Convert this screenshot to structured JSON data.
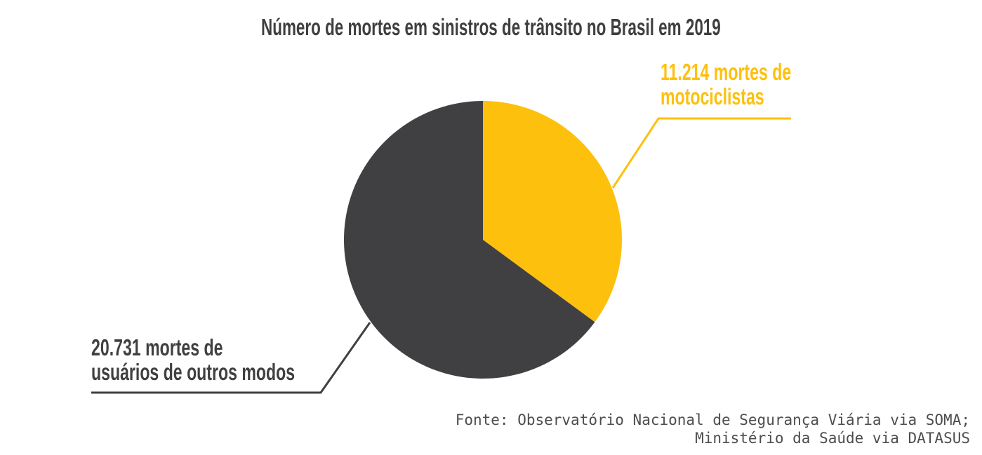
{
  "title": "Número de mortes em sinistros de trânsito no Brasil em 2019",
  "colors": {
    "motociclistas_yellow": "#FDC00D",
    "outros_dark_gray": "#403F41",
    "title_text": "#3F3E40",
    "source_text": "#4D4D4D",
    "background": "#FFFFFF"
  },
  "source": {
    "line1": "Fonte: Observatório Nacional de Segurança Viária via SOMA;",
    "line2": "Ministério da Saúde via DATASUS"
  },
  "chart_data": {
    "type": "pie",
    "title": "Número de mortes em sinistros de trânsito no Brasil em 2019",
    "categories": [
      "mortes de motociclistas",
      "mortes de usuários de outros modos"
    ],
    "values": [
      11214,
      20731
    ],
    "colors": [
      "#FDC00D",
      "#403F41"
    ],
    "start_angle_deg": 0,
    "direction": "clockwise",
    "legend": "none",
    "data_labels": "callout-annotations",
    "annotations": [
      {
        "id": "motociclistas",
        "lines": [
          "11.214 mortes de",
          "motociclistas"
        ],
        "color": "#FDC00D"
      },
      {
        "id": "outros",
        "lines": [
          "20.731 mortes de",
          "usuários de outros modos"
        ],
        "color": "#403F41"
      }
    ],
    "source_lines": [
      "Fonte: Observatório Nacional de Segurança Viária via SOMA;",
      "Ministério da Saúde via DATASUS"
    ]
  }
}
